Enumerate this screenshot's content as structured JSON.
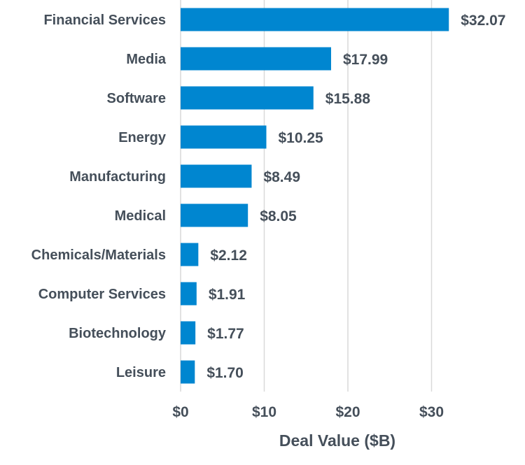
{
  "chart_data": {
    "type": "bar",
    "orientation": "horizontal",
    "categories": [
      "Financial Services",
      "Media",
      "Software",
      "Energy",
      "Manufacturing",
      "Medical",
      "Chemicals/Materials",
      "Computer Services",
      "Biotechnology",
      "Leisure"
    ],
    "values": [
      32.07,
      17.99,
      15.88,
      10.25,
      8.49,
      8.05,
      2.12,
      1.91,
      1.77,
      1.7
    ],
    "data_labels": [
      "$32.07",
      "$17.99",
      "$15.88",
      "$10.25",
      "$8.49",
      "$8.05",
      "$2.12",
      "$1.91",
      "$1.77",
      "$1.70"
    ],
    "title": "",
    "xlabel": "Deal Value ($B)",
    "ylabel": "",
    "xlim": [
      0,
      32.5
    ],
    "x_ticks": [
      0,
      10,
      20,
      30
    ],
    "x_tick_labels": [
      "$0",
      "$10",
      "$20",
      "$30"
    ],
    "grid": "vertical",
    "colors": {
      "bar": "#0086D0",
      "grid": "#d9d9d9",
      "text": "#454f5a"
    }
  }
}
